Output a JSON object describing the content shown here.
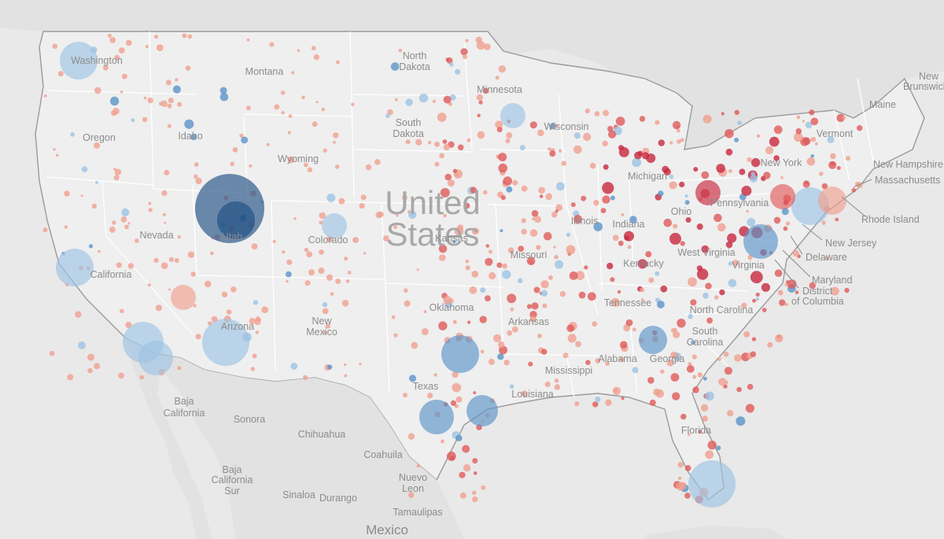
{
  "map": {
    "country_label_line1": "United",
    "country_label_line2": "States",
    "mexico_label": "Mexico",
    "legend": null
  },
  "colors": {
    "water": "#e9e9e9",
    "land_us": "#efefef",
    "land_other": "#e2e2e2",
    "border": "#9a9a9a",
    "state_line": "#ffffff",
    "strong_red": "#c8283f",
    "red": "#e05a5a",
    "light_red": "#f0a090",
    "light_blue": "#9cc3e4",
    "blue": "#5b93c8",
    "dark_blue": "#1f4e82"
  },
  "place_labels": [
    {
      "name": "Washington"
    },
    {
      "name": "Montana"
    },
    {
      "name": "North"
    },
    {
      "name": "Dakota"
    },
    {
      "name": "Minnesota"
    },
    {
      "name": "Oregon"
    },
    {
      "name": "Idaho"
    },
    {
      "name": "South"
    },
    {
      "name": "Dakota"
    },
    {
      "name": "Wisconsin"
    },
    {
      "name": "Wyoming"
    },
    {
      "name": "Michigan"
    },
    {
      "name": "Nevada"
    },
    {
      "name": "Utah"
    },
    {
      "name": "Colorado"
    },
    {
      "name": "Kansas"
    },
    {
      "name": "Missouri"
    },
    {
      "name": "Illinois"
    },
    {
      "name": "Indiana"
    },
    {
      "name": "Ohio"
    },
    {
      "name": "Pennsylvania"
    },
    {
      "name": "New York"
    },
    {
      "name": "Vermont"
    },
    {
      "name": "California"
    },
    {
      "name": "Kentucky"
    },
    {
      "name": "Virginia"
    },
    {
      "name": "West Virginia"
    },
    {
      "name": "Tennessee"
    },
    {
      "name": "North Carolina"
    },
    {
      "name": "Oklahoma"
    },
    {
      "name": "Arkansas"
    },
    {
      "name": "Arizona"
    },
    {
      "name": "New"
    },
    {
      "name": "Mexico"
    },
    {
      "name": "South"
    },
    {
      "name": "Carolina"
    },
    {
      "name": "Alabama"
    },
    {
      "name": "Georgia"
    },
    {
      "name": "Mississippi"
    },
    {
      "name": "Texas"
    },
    {
      "name": "Louisiana"
    },
    {
      "name": "Florida"
    },
    {
      "name": "Baja"
    },
    {
      "name": "California"
    },
    {
      "name": "Sonora"
    },
    {
      "name": "Chihuahua"
    },
    {
      "name": "Coahuila"
    },
    {
      "name": "Baja"
    },
    {
      "name": "California"
    },
    {
      "name": "Sur"
    },
    {
      "name": "Nuevo"
    },
    {
      "name": "Leon"
    },
    {
      "name": "Sinaloa"
    },
    {
      "name": "Durango"
    },
    {
      "name": "Tamaulipas"
    },
    {
      "name": "New"
    },
    {
      "name": "Brunswick"
    },
    {
      "name": "Maine"
    },
    {
      "name": "New Hampshire"
    },
    {
      "name": "Massachusetts"
    },
    {
      "name": "Rhode Island"
    },
    {
      "name": "New Jersey"
    },
    {
      "name": "Delaware"
    },
    {
      "name": "Maryland"
    },
    {
      "name": "District"
    },
    {
      "name": "of Columbia"
    }
  ],
  "bubbles": [
    {
      "county": "Salt Lake area",
      "size": 44,
      "tone": "dark_blue"
    },
    {
      "county": "Utah County",
      "size": 24,
      "tone": "dark_blue"
    },
    {
      "county": "Seattle area",
      "size": 24,
      "tone": "light_blue"
    },
    {
      "county": "Phoenix area",
      "size": 30,
      "tone": "light_blue"
    },
    {
      "county": "San Diego area",
      "size": 26,
      "tone": "light_blue"
    },
    {
      "county": "Imperial area",
      "size": 22,
      "tone": "light_blue"
    },
    {
      "county": "San Francisco area",
      "size": 24,
      "tone": "light_blue"
    },
    {
      "county": "Miami area",
      "size": 30,
      "tone": "light_blue"
    },
    {
      "county": "Houston area",
      "size": 24,
      "tone": "blue"
    },
    {
      "county": "San Antonio area",
      "size": 22,
      "tone": "blue"
    },
    {
      "county": "Dallas area",
      "size": 20,
      "tone": "blue"
    },
    {
      "county": "Washington DC area",
      "size": 22,
      "tone": "blue"
    },
    {
      "county": "New York area",
      "size": 24,
      "tone": "light_blue"
    },
    {
      "county": "Boston area",
      "size": 18,
      "tone": "light_red"
    },
    {
      "county": "Minneapolis area",
      "size": 16,
      "tone": "light_blue"
    },
    {
      "county": "Atlanta area",
      "size": 18,
      "tone": "blue"
    },
    {
      "county": "Las Vegas area",
      "size": 16,
      "tone": "light_red"
    },
    {
      "county": "Denver area",
      "size": 16,
      "tone": "light_blue"
    },
    {
      "county": "Pittsburgh area",
      "size": 16,
      "tone": "strong_red"
    },
    {
      "county": "Philadelphia area",
      "size": 16,
      "tone": "red"
    }
  ]
}
